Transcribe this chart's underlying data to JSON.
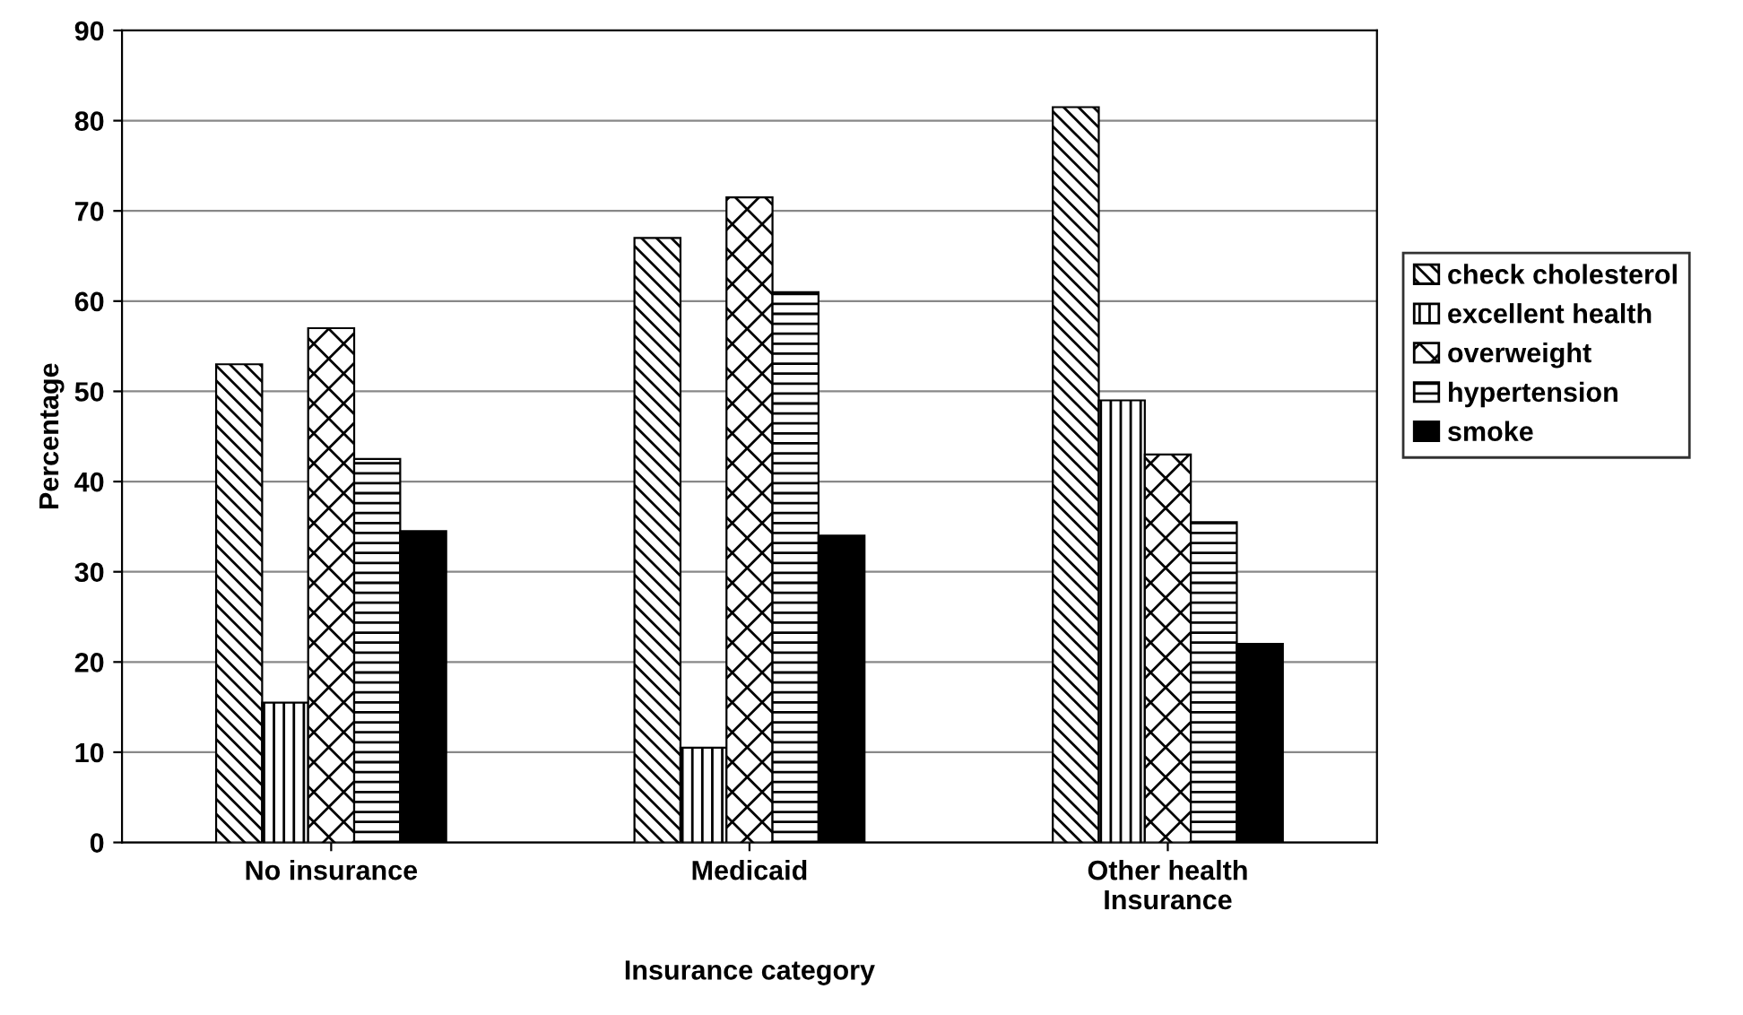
{
  "chart_data": {
    "type": "bar",
    "xlabel": "Insurance category",
    "ylabel": "Percentage",
    "categories": [
      "No insurance",
      "Medicaid",
      "Other health\nInsurance"
    ],
    "series": [
      {
        "name": "check cholesterol",
        "color": "#000000",
        "values": [
          53,
          67,
          81.5
        ]
      },
      {
        "name": "excellent health",
        "color": "#000000",
        "values": [
          15.5,
          10.5,
          49
        ]
      },
      {
        "name": "overweight",
        "color": "#000000",
        "values": [
          57,
          71.5,
          43
        ]
      },
      {
        "name": "hypertension",
        "color": "#000000",
        "values": [
          42.5,
          61,
          35.5
        ]
      },
      {
        "name": "smoke",
        "color": "#000000",
        "values": [
          34.5,
          34,
          22
        ]
      }
    ],
    "ylim": [
      0,
      90
    ],
    "yticks": [
      0,
      10,
      20,
      30,
      40,
      50,
      60,
      70,
      80,
      90
    ],
    "grid": "y",
    "legend": "right"
  }
}
